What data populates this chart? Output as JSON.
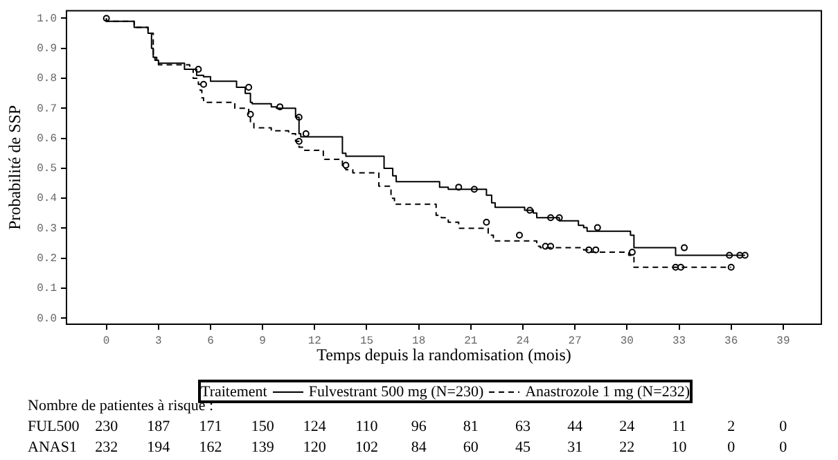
{
  "chart_data": {
    "type": "step",
    "xlabel": "Temps depuis la randomisation (mois)",
    "ylabel": "Probabilité de SSP",
    "legend_title": "Traitement",
    "legend": "bottom",
    "grid": false,
    "xlim": [
      -2.3,
      41.2
    ],
    "xticks": [
      0,
      3,
      6,
      9,
      12,
      15,
      18,
      21,
      24,
      27,
      30,
      33,
      36,
      39
    ],
    "ylim": [
      -0.02,
      1.025
    ],
    "yticks": [
      {
        "value": 0,
        "label": "0.0"
      },
      {
        "value": 0.1,
        "label": "0.1"
      },
      {
        "value": 0.2,
        "label": "0.2"
      },
      {
        "value": 0.3,
        "label": "0.3"
      },
      {
        "value": 0.4,
        "label": "0.4"
      },
      {
        "value": 0.5,
        "label": "0.5"
      },
      {
        "value": 0.6,
        "label": "0.6"
      },
      {
        "value": 0.7,
        "label": "0.7"
      },
      {
        "value": 0.8,
        "label": "0.8"
      },
      {
        "value": 0.9,
        "label": "0.9"
      },
      {
        "value": 1,
        "label": "1.0"
      }
    ],
    "series": [
      {
        "name": "Fulvestrant 500 mg (N=230)",
        "color": "#000000",
        "line_style": "solid",
        "x": [
          0,
          1.6,
          2.4,
          2.6,
          2.7,
          2.8,
          3.0,
          4.5,
          5.2,
          5.6,
          6.0,
          7.5,
          8.0,
          8.3,
          8.4,
          9.5,
          9.8,
          10.9,
          11.1,
          11.2,
          13.6,
          13.8,
          16.0,
          16.5,
          16.7,
          19.2,
          19.7,
          21.9,
          22.2,
          22.4,
          24.1,
          24.6,
          24.8,
          26.1,
          27.2,
          27.5,
          27.7,
          30.2,
          30.4,
          32.8,
          35.8,
          36.8
        ],
        "values": [
          1,
          0.99,
          0.97,
          0.95,
          0.9,
          0.87,
          0.86,
          0.85,
          0.83,
          0.81,
          0.805,
          0.79,
          0.77,
          0.75,
          0.72,
          0.715,
          0.705,
          0.7,
          0.67,
          0.615,
          0.605,
          0.55,
          0.54,
          0.5,
          0.475,
          0.455,
          0.437,
          0.43,
          0.41,
          0.385,
          0.37,
          0.36,
          0.351,
          0.335,
          0.325,
          0.31,
          0.302,
          0.29,
          0.277,
          0.235,
          0.21,
          0.21
        ]
      },
      {
        "name": "Anastrozole 1 mg (N=232)",
        "color": "#000000",
        "line_style": "dashed",
        "x": [
          0,
          1.6,
          2.4,
          2.7,
          2.9,
          3.0,
          4.8,
          5.0,
          5.3,
          5.4,
          5.5,
          5.6,
          7.4,
          8.2,
          8.3,
          8.5,
          9.5,
          10.5,
          10.9,
          11.1,
          11.3,
          12.5,
          13.6,
          13.8,
          14.2,
          15.7,
          16.4,
          16.6,
          19.0,
          19.3,
          19.7,
          20.3,
          22.0,
          22.3,
          24.8,
          24.9,
          25.0,
          27.5,
          27.8,
          30.1,
          30.4,
          30.5,
          36.0
        ],
        "values": [
          1,
          0.99,
          0.97,
          0.95,
          0.87,
          0.86,
          0.845,
          0.83,
          0.8,
          0.78,
          0.76,
          0.735,
          0.72,
          0.7,
          0.68,
          0.65,
          0.635,
          0.625,
          0.615,
          0.59,
          0.57,
          0.56,
          0.53,
          0.5,
          0.495,
          0.485,
          0.44,
          0.4,
          0.38,
          0.343,
          0.335,
          0.32,
          0.3,
          0.277,
          0.258,
          0.25,
          0.24,
          0.235,
          0.228,
          0.22,
          0.21,
          0.17,
          0.17
        ]
      },
      {
        "type": "scatter",
        "marker": "circle",
        "color": "#000000",
        "x": [
          0,
          5.3,
          8.2,
          10.0,
          11.1,
          11.5,
          20.3,
          21.2,
          24.4,
          25.6,
          26.1,
          28.3,
          33.3,
          35.9,
          36.5,
          36.8
        ],
        "values": [
          1,
          0.83,
          0.77,
          0.705,
          0.67,
          0.615,
          0.437,
          0.43,
          0.36,
          0.335,
          0.335,
          0.302,
          0.235,
          0.21,
          0.21,
          0.21
        ]
      },
      {
        "type": "scatter",
        "marker": "circle",
        "color": "#000000",
        "x": [
          5.6,
          8.3,
          11.1,
          13.8,
          21.9,
          23.8,
          25.3,
          25.6,
          27.8,
          28.2,
          30.3,
          32.8,
          33.1,
          36.0
        ],
        "values": [
          0.78,
          0.68,
          0.59,
          0.51,
          0.32,
          0.277,
          0.24,
          0.24,
          0.228,
          0.228,
          0.22,
          0.17,
          0.17,
          0.17
        ]
      }
    ],
    "annotations": [
      "Nombre de patientes à risque :",
      "FUL500 230 187 171 150 124 110 96 81 63 44 24 11 2 0",
      "ANAS1 232 194 162 139 120 102 84 60 45 31 22 10 0 0"
    ]
  }
}
